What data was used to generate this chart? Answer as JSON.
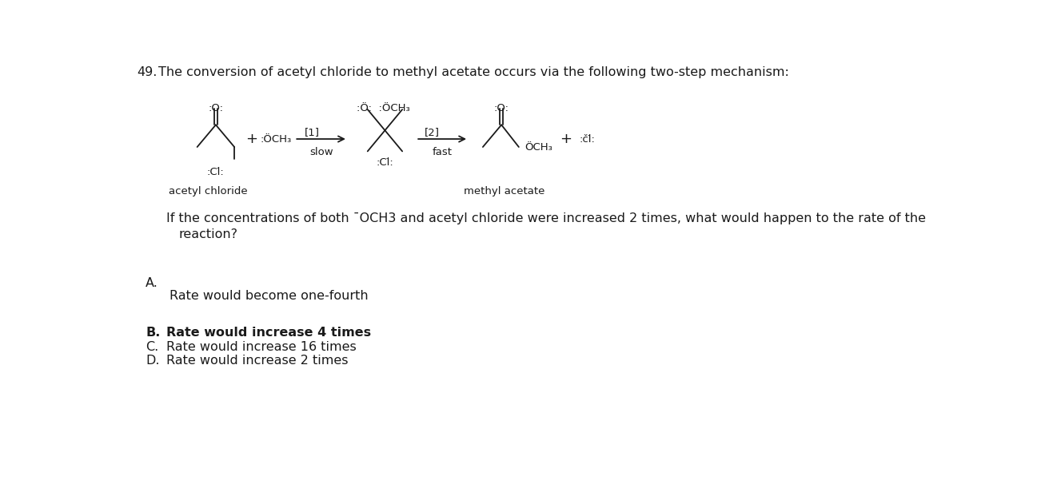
{
  "background_color": "#ffffff",
  "fig_width": 13.22,
  "fig_height": 6.16,
  "q_num": "49.",
  "title_text": "The conversion of acetyl chloride to methyl acetate occurs via the following two-step mechanism:",
  "q_line1": "If the concentrations of both ¯OCH3 and acetyl chloride were increased 2 times, what would happen to the rate of the",
  "q_line2": "reaction?",
  "A_label": "A.",
  "A_text": "Rate would become one-fourth",
  "B_label": "B.",
  "B_text": "Rate would increase 4 times",
  "C_label": "C.",
  "C_text": "Rate would increase 16 times",
  "D_label": "D.",
  "D_text": "Rate would increase 2 times",
  "font_size_main": 11.5,
  "font_size_chem": 9.5,
  "text_color": "#1a1a1a"
}
